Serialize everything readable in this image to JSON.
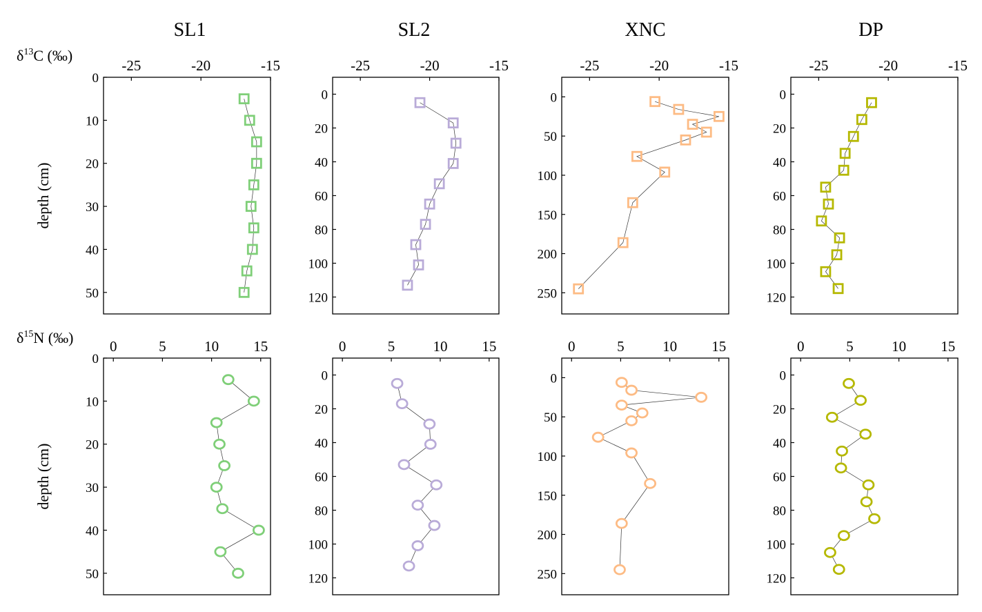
{
  "chart_data": [
    {
      "type": "line",
      "panel": "SL1",
      "title": "SL1",
      "row": "d13C",
      "xlim": [
        -27,
        -15
      ],
      "xticks": [
        -25,
        -20,
        -15
      ],
      "ylim": [
        0,
        55
      ],
      "yticks": [
        0,
        10,
        20,
        30,
        40,
        50
      ],
      "ylabel": "depth (cm)",
      "color": "#7fcf78",
      "marker": "square",
      "x": [
        -16.9,
        -16.5,
        -16.0,
        -16.0,
        -16.2,
        -16.4,
        -16.2,
        -16.3,
        -16.7,
        -16.9
      ],
      "depth": [
        5,
        10,
        15,
        20,
        25,
        30,
        35,
        40,
        45,
        50
      ]
    },
    {
      "type": "line",
      "panel": "SL2",
      "title": "SL2",
      "row": "d13C",
      "xlim": [
        -27,
        -15
      ],
      "xticks": [
        -25,
        -20,
        -15
      ],
      "ylim": [
        -10,
        130
      ],
      "yticks": [
        0,
        20,
        40,
        60,
        80,
        100,
        120
      ],
      "ylabel": "",
      "color": "#b9abd8",
      "marker": "square",
      "x": [
        -20.7,
        -18.3,
        -18.1,
        -18.3,
        -19.3,
        -20.0,
        -20.3,
        -21.0,
        -20.8,
        -21.6
      ],
      "depth": [
        5,
        17,
        29,
        41,
        53,
        65,
        77,
        89,
        101,
        113
      ]
    },
    {
      "type": "line",
      "panel": "XNC",
      "title": "XNC",
      "row": "d13C",
      "xlim": [
        -27,
        -15
      ],
      "xticks": [
        -25,
        -20,
        -15
      ],
      "ylim": [
        -25,
        277
      ],
      "yticks": [
        0,
        50,
        100,
        150,
        200,
        250
      ],
      "ylabel": "",
      "color": "#fdbb84",
      "marker": "square",
      "x": [
        -20.3,
        -18.6,
        -15.7,
        -17.6,
        -16.6,
        -18.1,
        -21.6,
        -19.6,
        -21.9,
        -22.6,
        -25.8
      ],
      "depth": [
        6,
        16,
        25,
        35,
        45,
        55,
        76,
        96,
        135,
        186,
        245
      ]
    },
    {
      "type": "line",
      "panel": "DP",
      "title": "DP",
      "row": "d13C",
      "xlim": [
        -27,
        -15
      ],
      "xticks": [
        -25,
        -20,
        -15
      ],
      "ylim": [
        -10,
        130
      ],
      "yticks": [
        0,
        20,
        40,
        60,
        80,
        100,
        120
      ],
      "ylabel": "",
      "color": "#b5b800",
      "marker": "square",
      "x": [
        -21.2,
        -21.9,
        -22.5,
        -23.1,
        -23.2,
        -24.5,
        -24.3,
        -24.8,
        -23.5,
        -23.7,
        -24.5,
        -23.6
      ],
      "depth": [
        5,
        15,
        25,
        35,
        45,
        55,
        65,
        75,
        85,
        95,
        105,
        115
      ]
    },
    {
      "type": "line",
      "panel": "SL1",
      "title": "",
      "row": "d15N",
      "xlim": [
        -1,
        16
      ],
      "xticks": [
        0,
        5,
        10,
        15
      ],
      "ylim": [
        0,
        55
      ],
      "yticks": [
        0,
        10,
        20,
        30,
        40,
        50
      ],
      "ylabel": "depth (cm)",
      "color": "#7fcf78",
      "marker": "circle",
      "x": [
        11.7,
        14.3,
        10.5,
        10.8,
        11.3,
        10.5,
        11.1,
        14.8,
        10.9,
        12.7
      ],
      "depth": [
        5,
        10,
        15,
        20,
        25,
        30,
        35,
        40,
        45,
        50
      ]
    },
    {
      "type": "line",
      "panel": "SL2",
      "title": "",
      "row": "d15N",
      "xlim": [
        -1,
        16
      ],
      "xticks": [
        0,
        5,
        10,
        15
      ],
      "ylim": [
        -10,
        130
      ],
      "yticks": [
        0,
        20,
        40,
        60,
        80,
        100,
        120
      ],
      "ylabel": "",
      "color": "#b9abd8",
      "marker": "circle",
      "x": [
        5.6,
        6.1,
        8.9,
        9.0,
        6.3,
        9.6,
        7.7,
        9.4,
        7.7,
        6.8
      ],
      "depth": [
        5,
        17,
        29,
        41,
        53,
        65,
        77,
        89,
        101,
        113
      ]
    },
    {
      "type": "line",
      "panel": "XNC",
      "title": "",
      "row": "d15N",
      "xlim": [
        -1,
        16
      ],
      "xticks": [
        0,
        5,
        10,
        15
      ],
      "ylim": [
        -25,
        277
      ],
      "yticks": [
        0,
        50,
        100,
        150,
        200,
        250
      ],
      "ylabel": "",
      "color": "#fdbb84",
      "marker": "circle",
      "x": [
        5.1,
        6.1,
        13.2,
        5.1,
        7.2,
        6.1,
        2.7,
        6.1,
        8.0,
        5.1,
        4.9
      ],
      "depth": [
        6,
        16,
        25,
        35,
        45,
        55,
        76,
        96,
        135,
        186,
        245
      ]
    },
    {
      "type": "line",
      "panel": "DP",
      "title": "",
      "row": "d15N",
      "xlim": [
        -1,
        16
      ],
      "xticks": [
        0,
        5,
        10,
        15
      ],
      "ylim": [
        -10,
        130
      ],
      "yticks": [
        0,
        20,
        40,
        60,
        80,
        100,
        120
      ],
      "ylabel": "",
      "color": "#b5b800",
      "marker": "circle",
      "x": [
        4.9,
        6.1,
        3.2,
        6.6,
        4.2,
        4.1,
        6.9,
        6.7,
        7.5,
        4.4,
        3.0,
        3.9
      ],
      "depth": [
        5,
        15,
        25,
        35,
        45,
        55,
        65,
        75,
        85,
        95,
        105,
        115
      ]
    }
  ],
  "row_labels": {
    "d13C": {
      "prefix": "δ",
      "sup": "13",
      "rest": "C (‰)"
    },
    "d15N": {
      "prefix": "δ",
      "sup": "15",
      "rest": "N (‰)"
    }
  },
  "column_titles": [
    "SL1",
    "SL2",
    "XNC",
    "DP"
  ],
  "ylabel": "depth (cm)"
}
